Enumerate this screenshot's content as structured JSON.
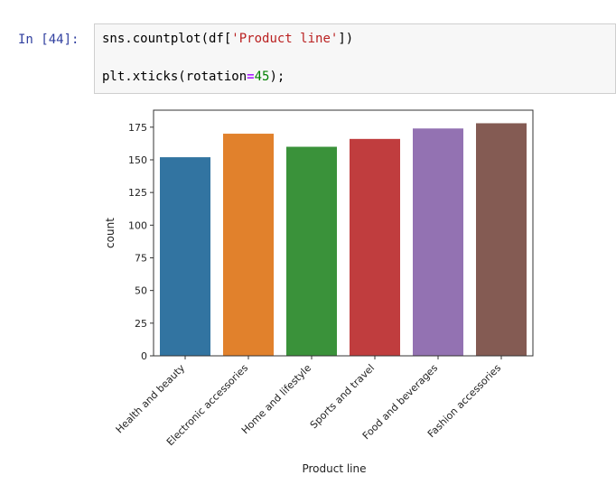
{
  "cell": {
    "prompt": "In [44]:",
    "line1": {
      "pre": "sns.countplot(df[",
      "str": "'Product line'",
      "post": "])"
    },
    "line2": {
      "pre": "plt.xticks(rotation",
      "op": "=",
      "num": "45",
      "post": ");"
    }
  },
  "chart_data": {
    "type": "bar",
    "categories": [
      "Health and beauty",
      "Electronic accessories",
      "Home and lifestyle",
      "Sports and travel",
      "Food and beverages",
      "Fashion accessories"
    ],
    "values": [
      152,
      170,
      160,
      166,
      174,
      178
    ],
    "colors": [
      "#3274a1",
      "#e1812c",
      "#3a923a",
      "#c03d3e",
      "#9372b2",
      "#845b53"
    ],
    "xlabel": "Product line",
    "ylabel": "count",
    "ylim": [
      0,
      188
    ],
    "yticks": [
      0,
      25,
      50,
      75,
      100,
      125,
      150,
      175
    ],
    "xtick_rotation": 45,
    "grid": false
  }
}
